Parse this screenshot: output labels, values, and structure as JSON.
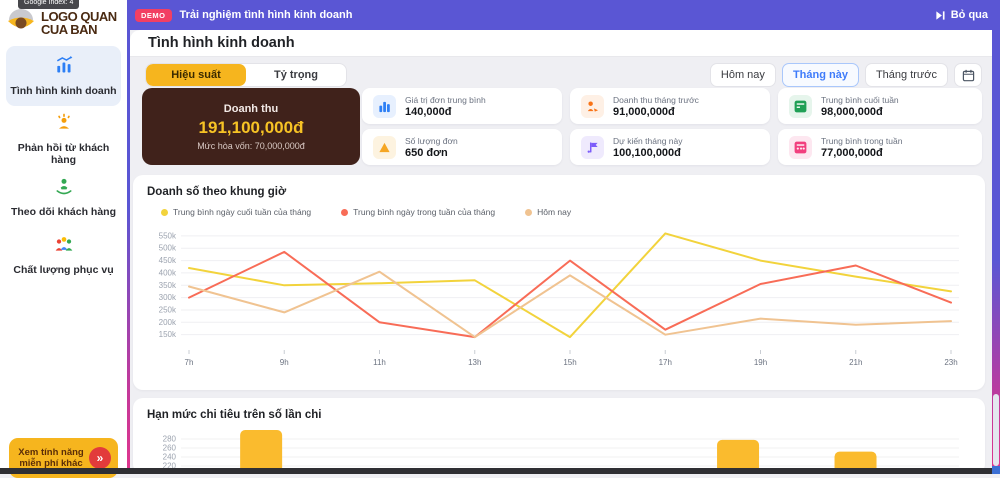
{
  "topbar": {
    "demo_badge": "DEMO",
    "message": "Trải nghiệm tình hình kinh doanh",
    "skip_label": "Bỏ qua"
  },
  "overlay_tooltip": "Google Index: 4",
  "sidebar": {
    "logo_line1": "LOGO QUAN",
    "logo_line2": "CUA BAN",
    "items": [
      {
        "label": "Tình hình kinh doanh",
        "active": true
      },
      {
        "label": "Phản hồi từ khách hàng",
        "active": false
      },
      {
        "label": "Theo dõi khách hàng",
        "active": false
      },
      {
        "label": "Chất lượng phục vụ",
        "active": false
      }
    ],
    "cta_label": "Xem tính năng miễn phí khác"
  },
  "header": {
    "title": "Tình hình kinh doanh"
  },
  "tabs": [
    {
      "label": "Hiệu suất",
      "active": true
    },
    {
      "label": "Tỷ trọng",
      "active": false
    }
  ],
  "time_filters": [
    {
      "label": "Hôm nay",
      "active": false
    },
    {
      "label": "Tháng này",
      "active": true
    },
    {
      "label": "Tháng trước",
      "active": false
    }
  ],
  "kpi": {
    "main": {
      "title": "Doanh thu",
      "value": "191,100,000đ",
      "subtitle": "Mức hòa vốn: 70,000,000đ"
    },
    "cards": [
      {
        "label": "Giá trị đơn trung bình",
        "value": "140,000đ",
        "icon": "bar-chart-icon",
        "accent": "#2D7FF5",
        "tint": "#E7F0FE"
      },
      {
        "label": "Doanh thu tháng trước",
        "value": "91,000,000đ",
        "icon": "customer-icon",
        "accent": "#F97316",
        "tint": "#FEF0E5"
      },
      {
        "label": "Trung bình cuối tuần",
        "value": "98,000,000đ",
        "icon": "calendar-green-icon",
        "accent": "#1FA055",
        "tint": "#E6F5EC"
      },
      {
        "label": "Số lượng đơn",
        "value": "650 đơn",
        "icon": "triangle-icon",
        "accent": "#F5A623",
        "tint": "#FDF3E0"
      },
      {
        "label": "Dự kiến tháng này",
        "value": "100,100,000đ",
        "icon": "forecast-flag-icon",
        "accent": "#7C5CFA",
        "tint": "#EFEAFD"
      },
      {
        "label": "Trung bình trong tuần",
        "value": "77,000,000đ",
        "icon": "calendar-pink-icon",
        "accent": "#F23F7E",
        "tint": "#FDE7F0"
      }
    ]
  },
  "chart_data": [
    {
      "type": "line",
      "title": "Doanh số theo khung giờ",
      "x": [
        "7h",
        "9h",
        "11h",
        "13h",
        "15h",
        "17h",
        "19h",
        "21h",
        "23h"
      ],
      "yticks": [
        150,
        200,
        250,
        300,
        350,
        400,
        450,
        500,
        550
      ],
      "ytick_suffix": "k",
      "ylim": [
        100,
        590
      ],
      "grid": true,
      "legend_position": "top",
      "series": [
        {
          "name": "Trung bình ngày cuối tuần của tháng",
          "color": "#F2D33C",
          "values": [
            420,
            350,
            358,
            370,
            140,
            560,
            450,
            385,
            325
          ]
        },
        {
          "name": "Trung bình ngày trong tuần của tháng",
          "color": "#F86C57",
          "values": [
            300,
            485,
            200,
            140,
            450,
            170,
            355,
            430,
            280
          ]
        },
        {
          "name": "Hôm nay",
          "color": "#F0C391",
          "values": [
            345,
            240,
            405,
            140,
            390,
            150,
            215,
            190,
            205
          ]
        }
      ]
    },
    {
      "type": "bar",
      "title": "Hạn mức chi tiêu trên số lần chi",
      "yticks": [
        280,
        260,
        240,
        220,
        200
      ],
      "color": "#FABB2E",
      "bars": [
        {
          "x_frac": 0.103,
          "value": 300
        },
        {
          "x_frac": 0.716,
          "value": 278
        },
        {
          "x_frac": 0.867,
          "value": 252
        }
      ]
    }
  ],
  "colors": {
    "topbar_bg": "#5A56D4",
    "demo_badge": "#F23F63",
    "accent_blue": "#3E7BFA",
    "tab_active_yellow": "#F6B51E",
    "brown_card_bg": "#40221B",
    "brown_card_value": "#F7C325",
    "sidebar_active_bg": "#E9EFF9",
    "cta_bg": "#F6B51E",
    "cta_arrow_bg": "#E23B3B",
    "edge_gradient_top": "#5A56D4",
    "edge_gradient_bottom": "#E0358C"
  }
}
